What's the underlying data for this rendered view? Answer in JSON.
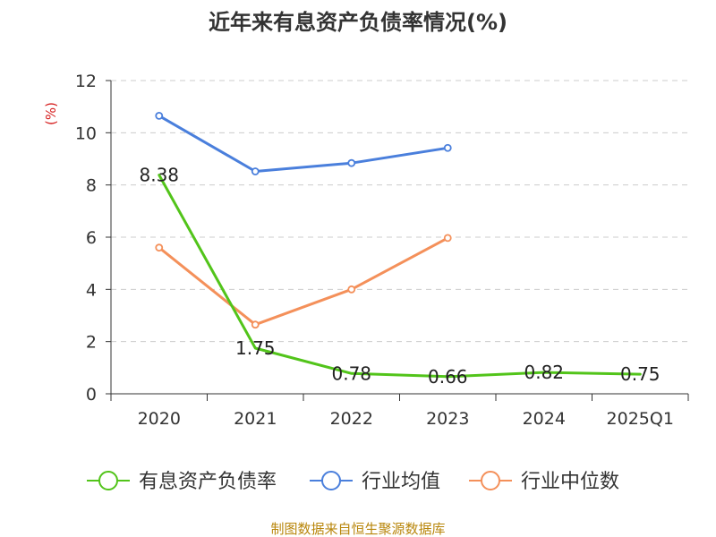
{
  "chart_data": {
    "type": "line",
    "title": "近年来有息资产负债率情况(%)",
    "y_unit": "(%)",
    "categories": [
      "2020",
      "2021",
      "2022",
      "2023",
      "2024",
      "2025Q1"
    ],
    "ylim": [
      0,
      12
    ],
    "yticks": [
      0,
      2,
      4,
      6,
      8,
      10,
      12
    ],
    "grid": true,
    "legend_position": "bottom",
    "series": [
      {
        "name": "有息资产负债率",
        "color": "#52c41a",
        "values": [
          8.38,
          1.75,
          0.78,
          0.66,
          0.82,
          0.75
        ],
        "labels": [
          "8.38",
          "1.75",
          "0.78",
          "0.66",
          "0.82",
          "0.75"
        ],
        "show_markers": false
      },
      {
        "name": "行业均值",
        "color": "#4a7fdc",
        "values": [
          10.65,
          8.52,
          8.84,
          9.42,
          null,
          null
        ],
        "show_markers": true
      },
      {
        "name": "行业中位数",
        "color": "#f4905a",
        "values": [
          5.6,
          2.65,
          4.0,
          5.97,
          null,
          null
        ],
        "show_markers": true
      }
    ]
  },
  "source_note": "制图数据来自恒生聚源数据库"
}
